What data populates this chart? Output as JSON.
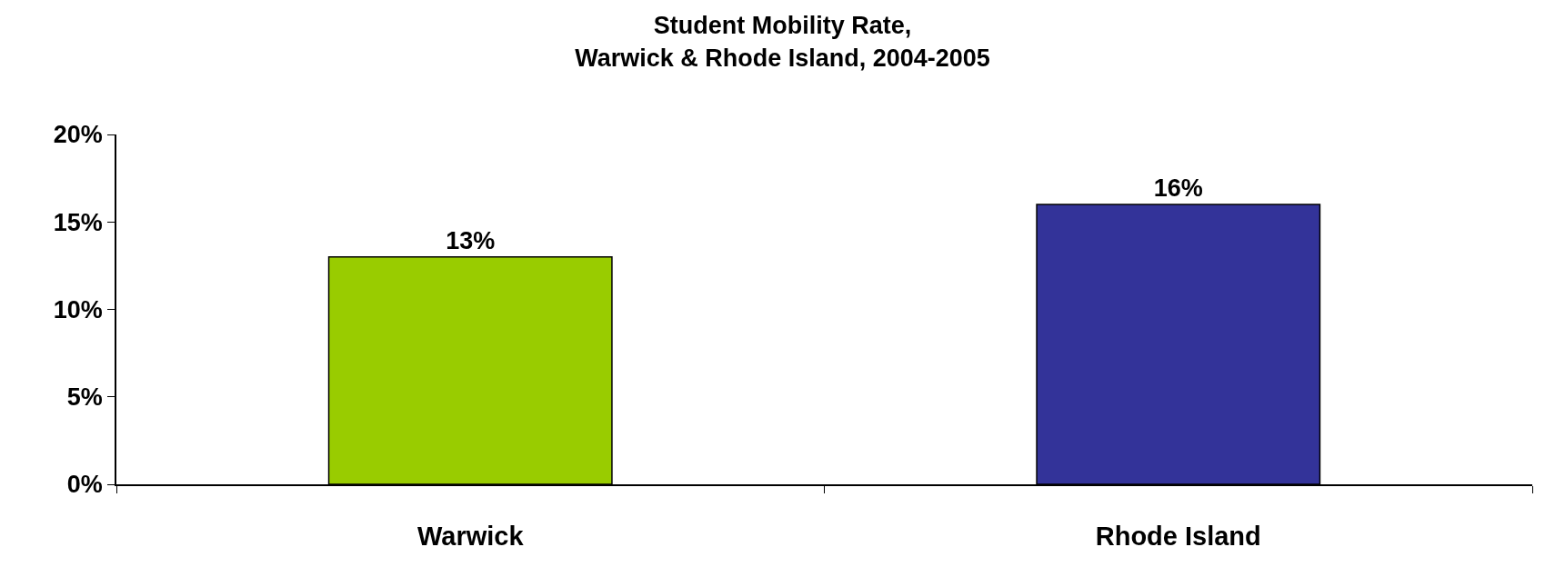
{
  "chart_data": {
    "type": "bar",
    "title": "Student Mobility Rate,\nWarwick & Rhode Island, 2004-2005",
    "categories": [
      "Warwick",
      "Rhode Island"
    ],
    "values": [
      13,
      16
    ],
    "colors": [
      "#99cc00",
      "#333399"
    ],
    "value_labels": [
      "13%",
      "16%"
    ],
    "ylim": [
      0,
      20
    ],
    "yticks": [
      {
        "value": 0,
        "label": "0%"
      },
      {
        "value": 5,
        "label": "5%"
      },
      {
        "value": 10,
        "label": "10%"
      },
      {
        "value": 15,
        "label": "15%"
      },
      {
        "value": 20,
        "label": "20%"
      }
    ],
    "legend": false
  }
}
